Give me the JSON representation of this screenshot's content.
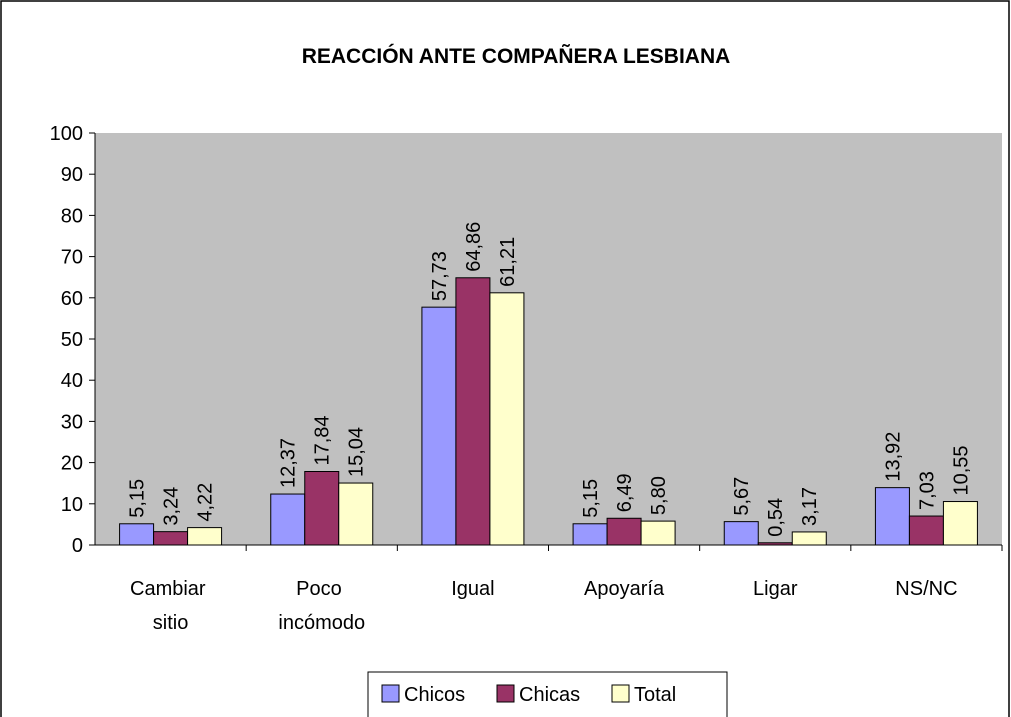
{
  "chart_data": {
    "type": "bar",
    "title": "REACCIÓN ANTE COMPAÑERA LESBIANA",
    "categories": [
      "Cambiar sitio",
      "Poco incómodo",
      "Igual",
      "Apoyaría",
      "Ligar",
      "NS/NC"
    ],
    "series": [
      {
        "name": "Chicos",
        "color": "#9999ff",
        "values": [
          5.15,
          12.37,
          57.73,
          5.15,
          5.67,
          13.92
        ],
        "value_labels": [
          "5,15",
          "12,37",
          "57,73",
          "5,15",
          "5,67",
          "13,92"
        ]
      },
      {
        "name": "Chicas",
        "color": "#993366",
        "values": [
          3.24,
          17.84,
          64.86,
          6.49,
          0.54,
          7.03
        ],
        "value_labels": [
          "3,24",
          "17,84",
          "64,86",
          "6,49",
          "0,54",
          "7,03"
        ]
      },
      {
        "name": "Total",
        "color": "#ffffcc",
        "values": [
          4.22,
          15.04,
          61.21,
          5.8,
          3.17,
          10.55
        ],
        "value_labels": [
          "4,22",
          "15,04",
          "61,21",
          "5,80",
          "3,17",
          "10,55"
        ]
      }
    ],
    "ylim": [
      0,
      100
    ],
    "yticks": [
      0,
      10,
      20,
      30,
      40,
      50,
      60,
      70,
      80,
      90,
      100
    ],
    "plot_background": "#c0c0c0",
    "legend": "bottom"
  }
}
